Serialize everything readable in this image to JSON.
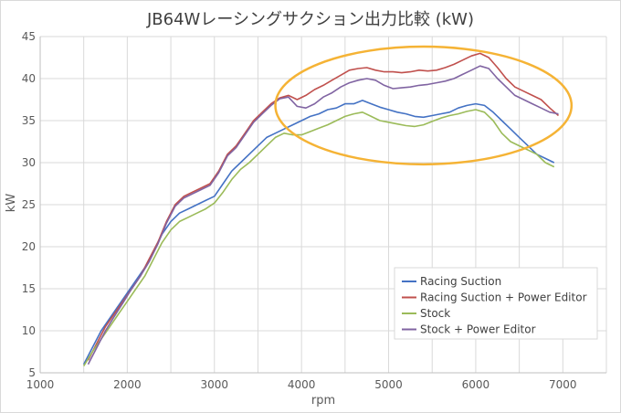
{
  "chart_data": {
    "type": "line",
    "title": "JB64Wレーシングサクション出力比較 (kW)",
    "xlabel": "rpm",
    "ylabel": "kW",
    "xlim": [
      1000,
      7500
    ],
    "ylim": [
      5,
      45
    ],
    "xticks": [
      1000,
      2000,
      3000,
      4000,
      5000,
      6000,
      7000
    ],
    "yticks": [
      5,
      10,
      15,
      20,
      25,
      30,
      35,
      40,
      45
    ],
    "grid": true,
    "legend_position": "lower-right",
    "annotation": {
      "type": "ellipse",
      "color": "#f5b335",
      "center": [
        5400,
        36.8
      ],
      "radius": [
        1700,
        7
      ]
    },
    "series": [
      {
        "name": "Racing Suction",
        "color": "#4472c4",
        "x": [
          1500,
          1600,
          1700,
          1800,
          1900,
          2000,
          2100,
          2200,
          2300,
          2400,
          2500,
          2600,
          2700,
          2800,
          2900,
          3000,
          3100,
          3200,
          3300,
          3400,
          3500,
          3600,
          3700,
          3800,
          3900,
          4000,
          4100,
          4200,
          4300,
          4400,
          4500,
          4600,
          4700,
          4800,
          4900,
          5000,
          5100,
          5200,
          5300,
          5400,
          5500,
          5600,
          5700,
          5800,
          5900,
          6000,
          6100,
          6200,
          6300,
          6400,
          6500,
          6600,
          6700,
          6800,
          6900
        ],
        "values": [
          6.0,
          8.0,
          10.0,
          11.5,
          13.0,
          14.5,
          16.0,
          17.5,
          19.5,
          21.5,
          23.0,
          24.0,
          24.5,
          25.0,
          25.5,
          26.0,
          27.5,
          29.0,
          30.0,
          31.0,
          32.0,
          33.0,
          33.5,
          34.0,
          34.5,
          35.0,
          35.5,
          35.8,
          36.3,
          36.5,
          37.0,
          37.0,
          37.4,
          37.0,
          36.6,
          36.3,
          36.0,
          35.8,
          35.5,
          35.4,
          35.6,
          35.8,
          36.0,
          36.5,
          36.8,
          37.0,
          36.8,
          36.0,
          35.0,
          34.0,
          33.0,
          32.0,
          31.0,
          30.5,
          30.0
        ]
      },
      {
        "name": "Racing Suction + Power Editor",
        "color": "#c0504d",
        "x": [
          1550,
          1650,
          1750,
          1850,
          1950,
          2050,
          2150,
          2250,
          2350,
          2450,
          2550,
          2650,
          2750,
          2850,
          2950,
          3050,
          3150,
          3250,
          3350,
          3450,
          3550,
          3650,
          3750,
          3850,
          3950,
          4050,
          4150,
          4250,
          4350,
          4450,
          4550,
          4650,
          4750,
          4850,
          4950,
          5050,
          5150,
          5250,
          5350,
          5450,
          5550,
          5650,
          5750,
          5850,
          5950,
          6050,
          6150,
          6250,
          6350,
          6450,
          6550,
          6650,
          6750,
          6850,
          6950
        ],
        "values": [
          6.5,
          8.5,
          10.5,
          12.0,
          13.5,
          15.0,
          16.5,
          18.5,
          20.5,
          23.0,
          25.0,
          26.0,
          26.5,
          27.0,
          27.5,
          29.0,
          31.0,
          32.0,
          33.5,
          35.0,
          36.0,
          37.0,
          37.7,
          38.0,
          37.5,
          38.0,
          38.7,
          39.2,
          39.8,
          40.4,
          41.0,
          41.2,
          41.3,
          41.0,
          40.8,
          40.8,
          40.7,
          40.8,
          41.0,
          40.9,
          41.0,
          41.3,
          41.7,
          42.2,
          42.7,
          43.0,
          42.5,
          41.3,
          40.0,
          39.0,
          38.5,
          38.0,
          37.5,
          36.5,
          35.6
        ]
      },
      {
        "name": "Stock",
        "color": "#9bbb59",
        "x": [
          1500,
          1600,
          1700,
          1800,
          1900,
          2000,
          2100,
          2200,
          2300,
          2400,
          2500,
          2600,
          2700,
          2800,
          2900,
          3000,
          3100,
          3200,
          3300,
          3400,
          3500,
          3600,
          3700,
          3800,
          3900,
          4000,
          4100,
          4200,
          4300,
          4400,
          4500,
          4600,
          4700,
          4800,
          4900,
          5000,
          5100,
          5200,
          5300,
          5400,
          5500,
          5600,
          5700,
          5800,
          5900,
          6000,
          6100,
          6200,
          6300,
          6400,
          6500,
          6600,
          6700,
          6800,
          6900
        ],
        "values": [
          5.8,
          7.5,
          9.0,
          10.5,
          12.0,
          13.5,
          15.0,
          16.5,
          18.5,
          20.5,
          22.0,
          23.0,
          23.5,
          24.0,
          24.5,
          25.2,
          26.5,
          28.0,
          29.2,
          30.0,
          31.0,
          32.0,
          33.0,
          33.5,
          33.3,
          33.3,
          33.7,
          34.1,
          34.5,
          35.0,
          35.5,
          35.8,
          36.0,
          35.5,
          35.0,
          34.8,
          34.6,
          34.4,
          34.3,
          34.5,
          34.9,
          35.3,
          35.6,
          35.8,
          36.1,
          36.3,
          36.0,
          35.0,
          33.5,
          32.5,
          32.0,
          31.5,
          31.0,
          30.0,
          29.5
        ]
      },
      {
        "name": "Stock + Power Editor",
        "color": "#8064a2",
        "x": [
          1550,
          1650,
          1750,
          1850,
          1950,
          2050,
          2150,
          2250,
          2350,
          2450,
          2550,
          2650,
          2750,
          2850,
          2950,
          3050,
          3150,
          3250,
          3350,
          3450,
          3550,
          3650,
          3750,
          3850,
          3950,
          4050,
          4150,
          4250,
          4350,
          4450,
          4550,
          4650,
          4750,
          4850,
          4950,
          5050,
          5150,
          5250,
          5350,
          5450,
          5550,
          5650,
          5750,
          5850,
          5950,
          6050,
          6150,
          6250,
          6350,
          6450,
          6550,
          6650,
          6750,
          6850,
          6950
        ],
        "values": [
          6.0,
          8.0,
          10.0,
          11.7,
          13.3,
          15.0,
          16.5,
          18.2,
          20.3,
          22.8,
          24.8,
          25.8,
          26.3,
          26.8,
          27.3,
          28.8,
          30.8,
          31.8,
          33.3,
          34.8,
          35.8,
          36.8,
          37.6,
          37.8,
          36.7,
          36.5,
          37.0,
          37.8,
          38.3,
          39.0,
          39.5,
          39.8,
          40.0,
          39.8,
          39.2,
          38.8,
          38.9,
          39.0,
          39.2,
          39.3,
          39.5,
          39.7,
          40.0,
          40.5,
          41.0,
          41.5,
          41.2,
          40.0,
          39.0,
          38.0,
          37.5,
          37.0,
          36.5,
          36.0,
          35.8
        ]
      }
    ]
  }
}
